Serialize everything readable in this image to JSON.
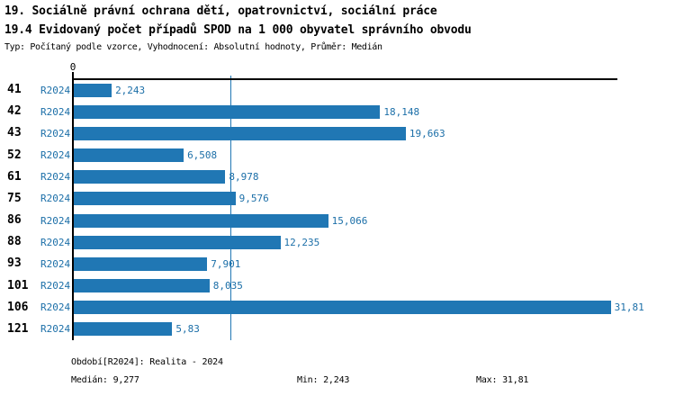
{
  "header": {
    "title_line1": "19. Sociálně právní ochrana dětí, opatrovnictví, sociální práce",
    "title_line2": "19.4 Evidovaný počet případů SPOD na 1 000 obyvatel správního obvodu",
    "subtitle": "Typ: Počítaný podle vzorce, Vyhodnocení: Absolutní hodnoty, Průměr: Medián"
  },
  "chart_data": {
    "type": "bar",
    "orientation": "horizontal",
    "title": "19.4 Evidovaný počet případů SPOD na 1 000 obyvatel správního obvodu",
    "categories": [
      "41",
      "42",
      "43",
      "52",
      "61",
      "75",
      "86",
      "88",
      "93",
      "101",
      "106",
      "121"
    ],
    "series": [
      {
        "name": "R2024",
        "values": [
          2.243,
          18.148,
          19.663,
          6.508,
          8.978,
          9.576,
          15.066,
          12.235,
          7.901,
          8.035,
          31.81,
          5.83
        ],
        "value_labels": [
          "2,243",
          "18,148",
          "19,663",
          "6,508",
          "8,978",
          "9,576",
          "15,066",
          "12,235",
          "7,901",
          "8,035",
          "31,81",
          "5,83"
        ]
      }
    ],
    "xlim": [
      0,
      32.2
    ],
    "x_tick_labels": [
      "0"
    ],
    "grid": false,
    "legend_position": "bottom",
    "median": 9.277,
    "min": 2.243,
    "max": 31.81,
    "bar_color": "#2077B4",
    "label_color": "#1C6FA8",
    "median_line_color": "#2077B4",
    "axis_color": "#000000"
  },
  "footer": {
    "period_label": "Období[R2024]: Realita - 2024",
    "median_label": "Medián: 9,277",
    "min_label": "Min: 2,243",
    "max_label": "Max: 31,81"
  }
}
